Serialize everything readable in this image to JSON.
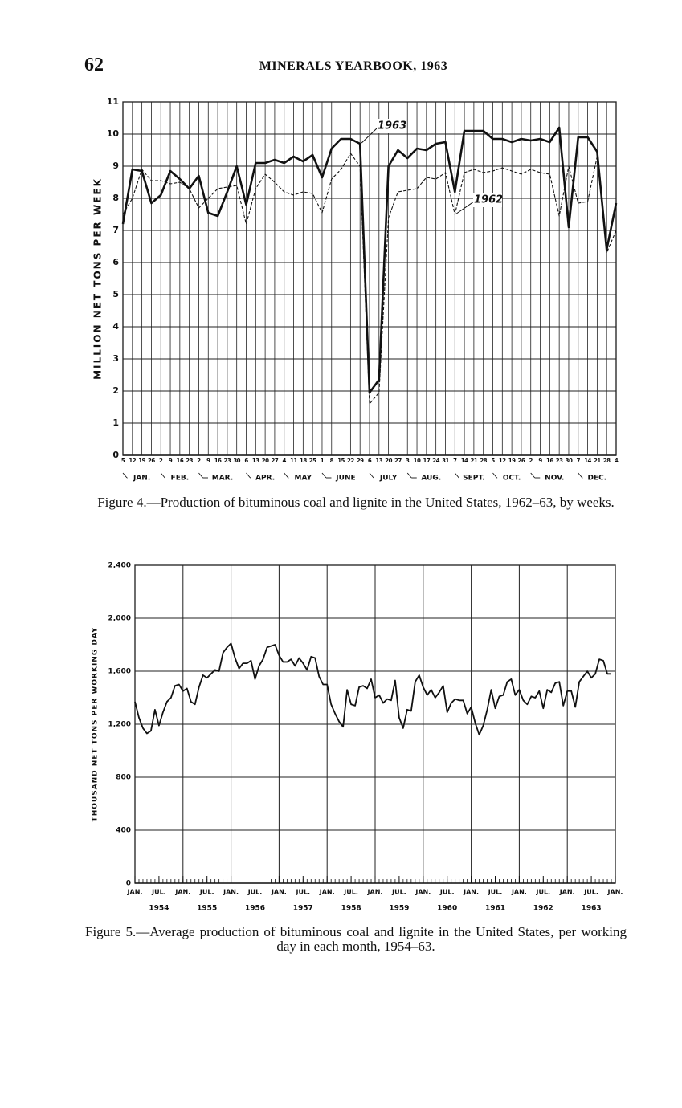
{
  "header": {
    "page_number": "62",
    "title": "MINERALS YEARBOOK, 1963"
  },
  "chart_data": [
    {
      "type": "line",
      "caption": "Figure 4.—Production of bituminous coal and lignite in the United States, 1962–63, by weeks.",
      "y_label": "MILLION NET TONS PER WEEK",
      "categories": [
        "5",
        "12",
        "19",
        "26",
        "2",
        "9",
        "16",
        "23",
        "2",
        "9",
        "16",
        "23",
        "30",
        "6",
        "13",
        "20",
        "27",
        "4",
        "11",
        "18",
        "25",
        "1",
        "8",
        "15",
        "22",
        "29",
        "6",
        "13",
        "20",
        "27",
        "3",
        "10",
        "17",
        "24",
        "31",
        "7",
        "14",
        "21",
        "28",
        "5",
        "12",
        "19",
        "26",
        "2",
        "9",
        "16",
        "23",
        "30",
        "7",
        "14",
        "21",
        "28",
        "4"
      ],
      "month_labels": [
        "JAN.",
        "FEB.",
        "MAR.",
        "APR.",
        "MAY",
        "JUNE",
        "JULY",
        "AUG.",
        "SEPT.",
        "OCT.",
        "NOV.",
        "DEC."
      ],
      "series": [
        {
          "name": "1963",
          "color": "#111111",
          "style": "solid",
          "values": [
            7.2,
            8.9,
            8.85,
            7.85,
            8.1,
            8.85,
            8.6,
            8.3,
            8.7,
            7.55,
            7.45,
            8.2,
            9.0,
            7.8,
            9.1,
            9.1,
            9.2,
            9.1,
            9.3,
            9.15,
            9.35,
            8.65,
            9.55,
            9.85,
            9.85,
            9.7,
            1.95,
            2.35,
            9.0,
            9.5,
            9.25,
            9.55,
            9.5,
            9.7,
            9.75,
            8.2,
            10.1,
            10.1,
            10.1,
            9.85,
            9.85,
            9.75,
            9.85,
            9.8,
            9.85,
            9.75,
            10.2,
            7.1,
            9.9,
            9.9,
            9.45,
            6.4,
            7.85
          ]
        },
        {
          "name": "1962",
          "color": "#111111",
          "style": "dashed",
          "values": [
            7.5,
            8.0,
            8.9,
            8.55,
            8.55,
            8.45,
            8.5,
            8.3,
            7.7,
            8.0,
            8.3,
            8.35,
            8.4,
            7.2,
            8.3,
            8.75,
            8.5,
            8.2,
            8.1,
            8.2,
            8.15,
            7.55,
            8.6,
            8.9,
            9.4,
            9.0,
            1.6,
            1.95,
            7.4,
            8.2,
            8.25,
            8.3,
            8.65,
            8.6,
            8.8,
            7.5,
            8.8,
            8.9,
            8.8,
            8.85,
            8.95,
            8.85,
            8.75,
            8.9,
            8.8,
            8.75,
            7.45,
            9.0,
            7.85,
            7.9,
            9.3,
            6.3,
            7.0
          ]
        }
      ],
      "ylim": [
        0,
        11
      ],
      "yticks": [
        0,
        1,
        2,
        3,
        4,
        5,
        6,
        7,
        8,
        9,
        10,
        11
      ],
      "grid": true
    },
    {
      "type": "line",
      "caption": "Figure 5.—Average production of bituminous coal and lignite in the United States, per working day in each month, 1954–63.",
      "y_label": "THOUSAND NET TONS PER WORKING DAY",
      "x": [
        "1954-01",
        "1954-02",
        "1954-03",
        "1954-04",
        "1954-05",
        "1954-06",
        "1954-07",
        "1954-08",
        "1954-09",
        "1954-10",
        "1954-11",
        "1954-12",
        "1955-01",
        "1955-02",
        "1955-03",
        "1955-04",
        "1955-05",
        "1955-06",
        "1955-07",
        "1955-08",
        "1955-09",
        "1955-10",
        "1955-11",
        "1955-12",
        "1956-01",
        "1956-02",
        "1956-03",
        "1956-04",
        "1956-05",
        "1956-06",
        "1956-07",
        "1956-08",
        "1956-09",
        "1956-10",
        "1956-11",
        "1956-12",
        "1957-01",
        "1957-02",
        "1957-03",
        "1957-04",
        "1957-05",
        "1957-06",
        "1957-07",
        "1957-08",
        "1957-09",
        "1957-10",
        "1957-11",
        "1957-12",
        "1958-01",
        "1958-02",
        "1958-03",
        "1958-04",
        "1958-05",
        "1958-06",
        "1958-07",
        "1958-08",
        "1958-09",
        "1958-10",
        "1958-11",
        "1958-12",
        "1959-01",
        "1959-02",
        "1959-03",
        "1959-04",
        "1959-05",
        "1959-06",
        "1959-07",
        "1959-08",
        "1959-09",
        "1959-10",
        "1959-11",
        "1959-12",
        "1960-01",
        "1960-02",
        "1960-03",
        "1960-04",
        "1960-05",
        "1960-06",
        "1960-07",
        "1960-08",
        "1960-09",
        "1960-10",
        "1960-11",
        "1960-12",
        "1961-01",
        "1961-02",
        "1961-03",
        "1961-04",
        "1961-05",
        "1961-06",
        "1961-07",
        "1961-08",
        "1961-09",
        "1961-10",
        "1961-11",
        "1961-12",
        "1962-01",
        "1962-02",
        "1962-03",
        "1962-04",
        "1962-05",
        "1962-06",
        "1962-07",
        "1962-08",
        "1962-09",
        "1962-10",
        "1962-11",
        "1962-12",
        "1963-01",
        "1963-02",
        "1963-03",
        "1963-04",
        "1963-05",
        "1963-06",
        "1963-07",
        "1963-08",
        "1963-09",
        "1963-10",
        "1963-11",
        "1963-12"
      ],
      "values": [
        1370,
        1250,
        1170,
        1130,
        1150,
        1310,
        1190,
        1290,
        1370,
        1400,
        1490,
        1500,
        1450,
        1470,
        1370,
        1350,
        1480,
        1570,
        1550,
        1580,
        1610,
        1600,
        1740,
        1780,
        1810,
        1700,
        1620,
        1660,
        1660,
        1680,
        1540,
        1640,
        1690,
        1780,
        1790,
        1800,
        1720,
        1670,
        1670,
        1690,
        1640,
        1700,
        1660,
        1610,
        1710,
        1700,
        1560,
        1500,
        1500,
        1350,
        1280,
        1220,
        1180,
        1460,
        1350,
        1340,
        1480,
        1490,
        1470,
        1540,
        1400,
        1420,
        1360,
        1390,
        1380,
        1530,
        1250,
        1170,
        1310,
        1300,
        1520,
        1570,
        1480,
        1420,
        1460,
        1400,
        1440,
        1490,
        1290,
        1360,
        1390,
        1380,
        1380,
        1280,
        1330,
        1210,
        1120,
        1190,
        1310,
        1460,
        1320,
        1410,
        1420,
        1520,
        1540,
        1420,
        1460,
        1380,
        1350,
        1410,
        1400,
        1450,
        1320,
        1460,
        1440,
        1510,
        1520,
        1340,
        1450,
        1450,
        1330,
        1520,
        1560,
        1600,
        1550,
        1580,
        1690,
        1680,
        1580,
        1580
      ],
      "color": "#111111",
      "xlim": [
        "1954-01",
        "1964-01"
      ],
      "xticks": [
        {
          "value": "1954-01",
          "label": "JAN."
        },
        {
          "value": "1954-07",
          "label": "JUL."
        },
        {
          "value": "1955-01",
          "label": "JAN."
        },
        {
          "value": "1955-07",
          "label": "JUL."
        },
        {
          "value": "1956-01",
          "label": "JAN."
        },
        {
          "value": "1956-07",
          "label": "JUL."
        },
        {
          "value": "1957-01",
          "label": "JAN."
        },
        {
          "value": "1957-07",
          "label": "JUL."
        },
        {
          "value": "1958-01",
          "label": "JAN."
        },
        {
          "value": "1958-07",
          "label": "JUL."
        },
        {
          "value": "1959-01",
          "label": "JAN."
        },
        {
          "value": "1959-07",
          "label": "JUL."
        },
        {
          "value": "1960-01",
          "label": "JAN."
        },
        {
          "value": "1960-07",
          "label": "JUL."
        },
        {
          "value": "1961-01",
          "label": "JAN."
        },
        {
          "value": "1961-07",
          "label": "JUL."
        },
        {
          "value": "1962-01",
          "label": "JAN."
        },
        {
          "value": "1962-07",
          "label": "JUL."
        },
        {
          "value": "1963-01",
          "label": "JAN."
        },
        {
          "value": "1963-07",
          "label": "JUL."
        },
        {
          "value": "1964-01",
          "label": "JAN."
        }
      ],
      "year_labels": [
        {
          "value": "1954-07",
          "label": "1954"
        },
        {
          "value": "1955-07",
          "label": "1955"
        },
        {
          "value": "1956-07",
          "label": "1956"
        },
        {
          "value": "1957-07",
          "label": "1957"
        },
        {
          "value": "1958-07",
          "label": "1958"
        },
        {
          "value": "1959-07",
          "label": "1959"
        },
        {
          "value": "1960-07",
          "label": "1960"
        },
        {
          "value": "1961-07",
          "label": "1961"
        },
        {
          "value": "1962-07",
          "label": "1962"
        },
        {
          "value": "1963-07",
          "label": "1963"
        }
      ],
      "ylim": [
        0,
        2400
      ],
      "yticks": [
        0,
        400,
        800,
        {
          "value": 1200,
          "label": "1,200"
        },
        {
          "value": 1600,
          "label": "1,600"
        },
        {
          "value": 2000,
          "label": "2,000"
        },
        {
          "value": 2400,
          "label": "2,400"
        }
      ],
      "grid": true
    }
  ]
}
